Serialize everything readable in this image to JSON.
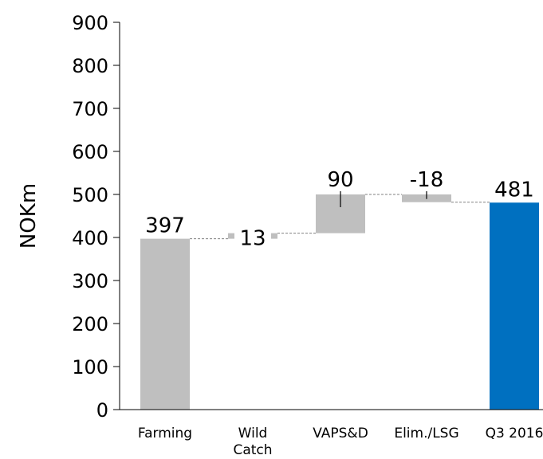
{
  "chart_data": {
    "type": "bar",
    "subtype": "waterfall",
    "title": "",
    "xlabel": "",
    "ylabel": "NOKm",
    "ylim": [
      0,
      900
    ],
    "yticks": [
      "0",
      "100",
      "200",
      "300",
      "400",
      "500",
      "600",
      "700",
      "800",
      "900"
    ],
    "grid": false,
    "categories": [
      "Farming",
      "Wild Catch",
      "VAPS&D",
      "Elim./LSG",
      "Q3 2016"
    ],
    "category_lines": [
      [
        "Farming"
      ],
      [
        "Wild",
        "Catch"
      ],
      [
        "VAPS&D"
      ],
      [
        "Elim./LSG"
      ],
      [
        "Q3 2016"
      ]
    ],
    "values": [
      397,
      13,
      90,
      -18,
      481
    ],
    "labels": [
      "397",
      "13",
      "90",
      "-18",
      "481"
    ],
    "bar_kinds": [
      "absolute",
      "delta",
      "delta",
      "delta",
      "total"
    ],
    "colors": {
      "delta": "#bfbfbf",
      "total": "#0070c0",
      "axis": "#000000",
      "connector": "#808080"
    }
  }
}
